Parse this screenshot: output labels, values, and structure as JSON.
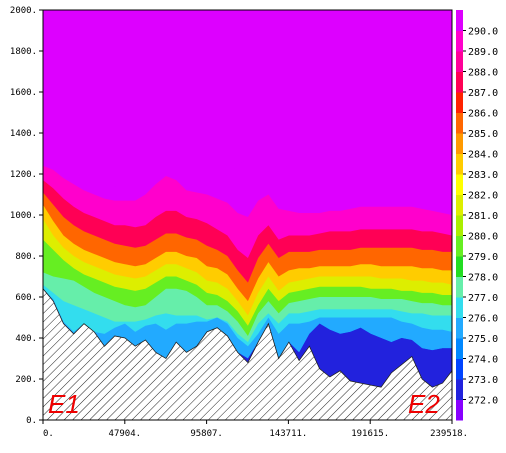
{
  "chart_data": {
    "type": "heatmap",
    "title": "",
    "xlabel": "",
    "ylabel": "",
    "xlim": [
      0,
      239518
    ],
    "ylim": [
      0,
      2000
    ],
    "x_ticks": [
      "0.",
      "47904.",
      "95807.",
      "143711.",
      "191615.",
      "239518."
    ],
    "y_ticks": [
      "0.",
      "200.",
      "400.",
      "600.",
      "800.",
      "1000.",
      "1200.",
      "1400.",
      "1600.",
      "1800.",
      "2000."
    ],
    "colorbar": {
      "labels": [
        "272.0",
        "273.0",
        "274.0",
        "275.0",
        "276.0",
        "277.0",
        "278.0",
        "279.0",
        "280.0",
        "281.0",
        "282.0",
        "283.0",
        "284.0",
        "285.0",
        "286.0",
        "287.0",
        "288.0",
        "289.0",
        "290.0"
      ],
      "colors": [
        "#8800ff",
        "#2222dd",
        "#0044ff",
        "#0088ff",
        "#22aaff",
        "#33ddee",
        "#66eeaa",
        "#22dd22",
        "#66ee22",
        "#aaee00",
        "#ddee00",
        "#ffff00",
        "#ffcc00",
        "#ff9900",
        "#ff6600",
        "#ff2200",
        "#ff0055",
        "#ff0099",
        "#ff00cc",
        "#dd00ff"
      ]
    },
    "x": [
      0,
      6000,
      12000,
      18000,
      24000,
      30000,
      36000,
      42000,
      48000,
      54000,
      60000,
      66000,
      72000,
      78000,
      84000,
      90000,
      96000,
      102000,
      108000,
      114000,
      120000,
      126000,
      132000,
      138000,
      144000,
      150000,
      156000,
      162000,
      168000,
      174000,
      180000,
      186000,
      192000,
      198000,
      204000,
      210000,
      216000,
      222000,
      228000,
      234000,
      239518
    ],
    "terrain_height": [
      640,
      580,
      470,
      420,
      470,
      430,
      360,
      410,
      400,
      360,
      390,
      330,
      300,
      380,
      330,
      360,
      430,
      450,
      410,
      330,
      280,
      380,
      470,
      300,
      380,
      290,
      360,
      250,
      210,
      240,
      190,
      180,
      170,
      160,
      230,
      270,
      310,
      200,
      160,
      180,
      240
    ],
    "series": [
      {
        "name": "273.0",
        "values": [
          640,
          580,
          470,
          420,
          470,
          430,
          360,
          410,
          400,
          360,
          390,
          330,
          300,
          380,
          330,
          360,
          430,
          450,
          410,
          330,
          300,
          380,
          470,
          300,
          380,
          330,
          420,
          470,
          440,
          420,
          430,
          450,
          420,
          400,
          380,
          400,
          390,
          350,
          340,
          350,
          350
        ]
      },
      {
        "name": "275.0",
        "values": [
          640,
          590,
          480,
          430,
          470,
          430,
          420,
          450,
          470,
          430,
          460,
          470,
          440,
          470,
          470,
          480,
          480,
          500,
          470,
          400,
          360,
          420,
          500,
          420,
          470,
          470,
          480,
          500,
          500,
          500,
          500,
          500,
          500,
          500,
          500,
          480,
          470,
          450,
          440,
          440,
          430
        ]
      },
      {
        "name": "276.0",
        "values": [
          660,
          620,
          580,
          560,
          540,
          520,
          500,
          480,
          480,
          480,
          490,
          510,
          520,
          510,
          510,
          510,
          490,
          500,
          480,
          420,
          380,
          470,
          520,
          470,
          520,
          520,
          530,
          540,
          540,
          540,
          540,
          540,
          540,
          540,
          540,
          530,
          520,
          520,
          510,
          510,
          510
        ]
      },
      {
        "name": "277.0",
        "values": [
          720,
          700,
          690,
          680,
          650,
          620,
          600,
          580,
          560,
          550,
          560,
          600,
          640,
          640,
          630,
          600,
          560,
          560,
          530,
          480,
          410,
          520,
          580,
          520,
          570,
          580,
          590,
          600,
          600,
          600,
          600,
          600,
          600,
          590,
          590,
          590,
          580,
          570,
          570,
          560,
          560
        ]
      },
      {
        "name": "279.0",
        "values": [
          880,
          830,
          780,
          740,
          710,
          690,
          670,
          650,
          640,
          630,
          640,
          670,
          700,
          700,
          680,
          660,
          620,
          610,
          580,
          530,
          460,
          560,
          640,
          580,
          620,
          630,
          640,
          650,
          650,
          650,
          650,
          650,
          640,
          640,
          640,
          630,
          630,
          620,
          620,
          610,
          610
        ]
      },
      {
        "name": "281.0",
        "values": [
          980,
          900,
          840,
          800,
          770,
          750,
          730,
          710,
          700,
          690,
          700,
          730,
          760,
          760,
          740,
          720,
          680,
          670,
          640,
          580,
          510,
          620,
          700,
          630,
          670,
          680,
          690,
          700,
          700,
          700,
          700,
          700,
          700,
          690,
          690,
          690,
          680,
          680,
          670,
          670,
          660
        ]
      },
      {
        "name": "283.0",
        "values": [
          1050,
          970,
          900,
          860,
          830,
          810,
          790,
          770,
          760,
          750,
          760,
          790,
          820,
          820,
          800,
          790,
          750,
          740,
          710,
          640,
          580,
          690,
          770,
          700,
          730,
          740,
          740,
          750,
          750,
          750,
          750,
          760,
          760,
          750,
          750,
          750,
          750,
          740,
          740,
          730,
          730
        ]
      },
      {
        "name": "285.0",
        "values": [
          1110,
          1050,
          990,
          950,
          920,
          900,
          880,
          860,
          850,
          840,
          850,
          880,
          910,
          910,
          890,
          880,
          850,
          830,
          800,
          730,
          670,
          790,
          860,
          790,
          820,
          820,
          820,
          830,
          830,
          830,
          830,
          840,
          840,
          840,
          840,
          840,
          840,
          830,
          830,
          820,
          820
        ]
      },
      {
        "name": "287.0",
        "values": [
          1170,
          1130,
          1080,
          1040,
          1010,
          990,
          970,
          950,
          950,
          940,
          950,
          990,
          1020,
          1020,
          990,
          980,
          960,
          930,
          900,
          830,
          790,
          900,
          950,
          880,
          900,
          900,
          900,
          910,
          920,
          920,
          920,
          930,
          930,
          930,
          930,
          930,
          930,
          920,
          920,
          910,
          900
        ]
      },
      {
        "name": "289.0",
        "values": [
          1240,
          1220,
          1180,
          1150,
          1120,
          1100,
          1080,
          1070,
          1070,
          1070,
          1100,
          1150,
          1190,
          1170,
          1120,
          1110,
          1100,
          1080,
          1060,
          1010,
          990,
          1070,
          1100,
          1030,
          1020,
          1010,
          1010,
          1010,
          1020,
          1020,
          1030,
          1040,
          1040,
          1040,
          1040,
          1040,
          1040,
          1030,
          1020,
          1010,
          1000
        ]
      },
      {
        "name": "290.0",
        "values": [
          1250,
          1250,
          1240,
          1220,
          1200,
          1170,
          1150,
          1140,
          1150,
          1180,
          1220,
          1250,
          1250,
          1230,
          1200,
          1180,
          1160,
          1170,
          1200,
          1240,
          1280,
          1280,
          1270,
          1250,
          1230,
          1210,
          1190,
          1170,
          1160,
          1160,
          1170,
          1160,
          1160,
          1170,
          1180,
          1170,
          1140,
          1120,
          1110,
          1100,
          1090
        ]
      }
    ],
    "annotations": {
      "left": "E1",
      "right": "E2"
    },
    "grid": false,
    "legend": "colorbar-right"
  }
}
